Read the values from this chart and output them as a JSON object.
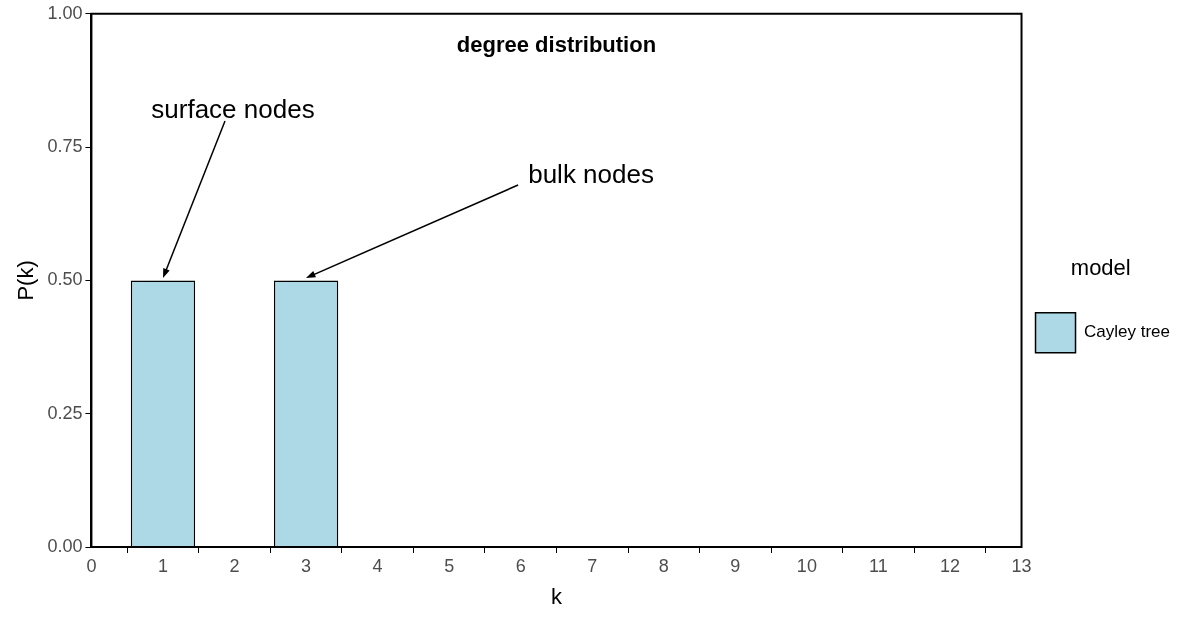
{
  "chart_data": {
    "type": "bar",
    "title": "degree distribution",
    "xlabel": "k",
    "ylabel": "P(k)",
    "legend_title": "model",
    "legend": "right",
    "x": [
      1,
      3
    ],
    "series": [
      {
        "name": "Cayley tree",
        "color": "#add8e6",
        "values": [
          0.5,
          0.5
        ]
      }
    ],
    "xlim": [
      0,
      13
    ],
    "xticks": [
      0,
      1,
      2,
      3,
      4,
      5,
      6,
      7,
      8,
      9,
      10,
      11,
      12,
      13
    ],
    "ylim": [
      0,
      1
    ],
    "yticks": [
      {
        "value": 0,
        "label": "0.00"
      },
      {
        "value": 0.25,
        "label": "0.25"
      },
      {
        "value": 0.5,
        "label": "0.50"
      },
      {
        "value": 0.75,
        "label": "0.75"
      },
      {
        "value": 1,
        "label": "1.00"
      }
    ],
    "grid": false,
    "annotations": [
      {
        "text": "surface nodes",
        "x": 1,
        "y": 0.5
      },
      {
        "text": "bulk nodes",
        "x": 3,
        "y": 0.5
      }
    ]
  }
}
